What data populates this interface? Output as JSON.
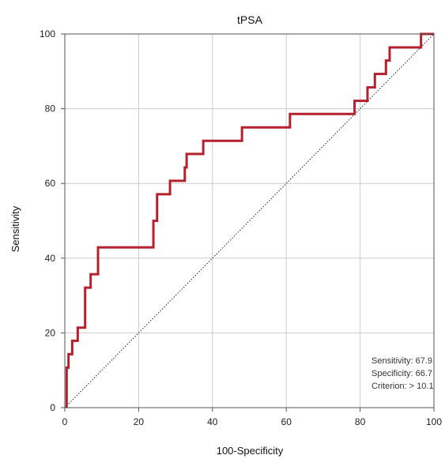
{
  "chart_data": {
    "type": "line",
    "title": "tPSA",
    "xlabel": "100-Specificity",
    "ylabel": "Sensitivity",
    "xlim": [
      0,
      100
    ],
    "ylim": [
      0,
      100
    ],
    "xticks": [
      "0",
      "20",
      "40",
      "60",
      "80",
      "100"
    ],
    "yticks": [
      "0",
      "20",
      "40",
      "60",
      "80",
      "100"
    ],
    "grid": true,
    "colors": {
      "roc": "#b5202e",
      "reference": "#222222",
      "grid": "#cccccc"
    },
    "series": [
      {
        "x": [
          0.5,
          0.5,
          1.0,
          1.0,
          2.0,
          2.0,
          3.5,
          3.5,
          5.5,
          5.5,
          7.0,
          7.0,
          9.0,
          9.0,
          12.5,
          12.5,
          24.0,
          24.0,
          25.0,
          25.0,
          28.5,
          28.5,
          32.5,
          32.5,
          33.0,
          33.0,
          37.5,
          37.5,
          48.0,
          48.0,
          61.0,
          61.0,
          78.5,
          78.5,
          82.0,
          82.0,
          84.0,
          84.0,
          87.0,
          87.0,
          88.0,
          88.0,
          96.5,
          96.5,
          100.0
        ],
        "y": [
          0,
          10.7,
          10.7,
          14.3,
          14.3,
          17.9,
          17.9,
          21.4,
          21.4,
          32.1,
          32.1,
          35.7,
          35.7,
          42.9,
          42.9,
          42.9,
          42.9,
          50.0,
          50.0,
          57.1,
          57.1,
          60.7,
          60.7,
          64.3,
          64.3,
          67.9,
          67.9,
          71.4,
          71.4,
          75.0,
          75.0,
          78.6,
          78.6,
          82.1,
          82.1,
          85.7,
          85.7,
          89.3,
          89.3,
          92.9,
          92.9,
          96.4,
          96.4,
          100.0,
          100.0
        ]
      },
      {
        "x": [
          0,
          100
        ],
        "y": [
          0,
          100
        ]
      }
    ],
    "annotations": [
      "Sensitivity: 67.9",
      "Specificity: 66.7",
      "Criterion: > 10.1"
    ]
  }
}
